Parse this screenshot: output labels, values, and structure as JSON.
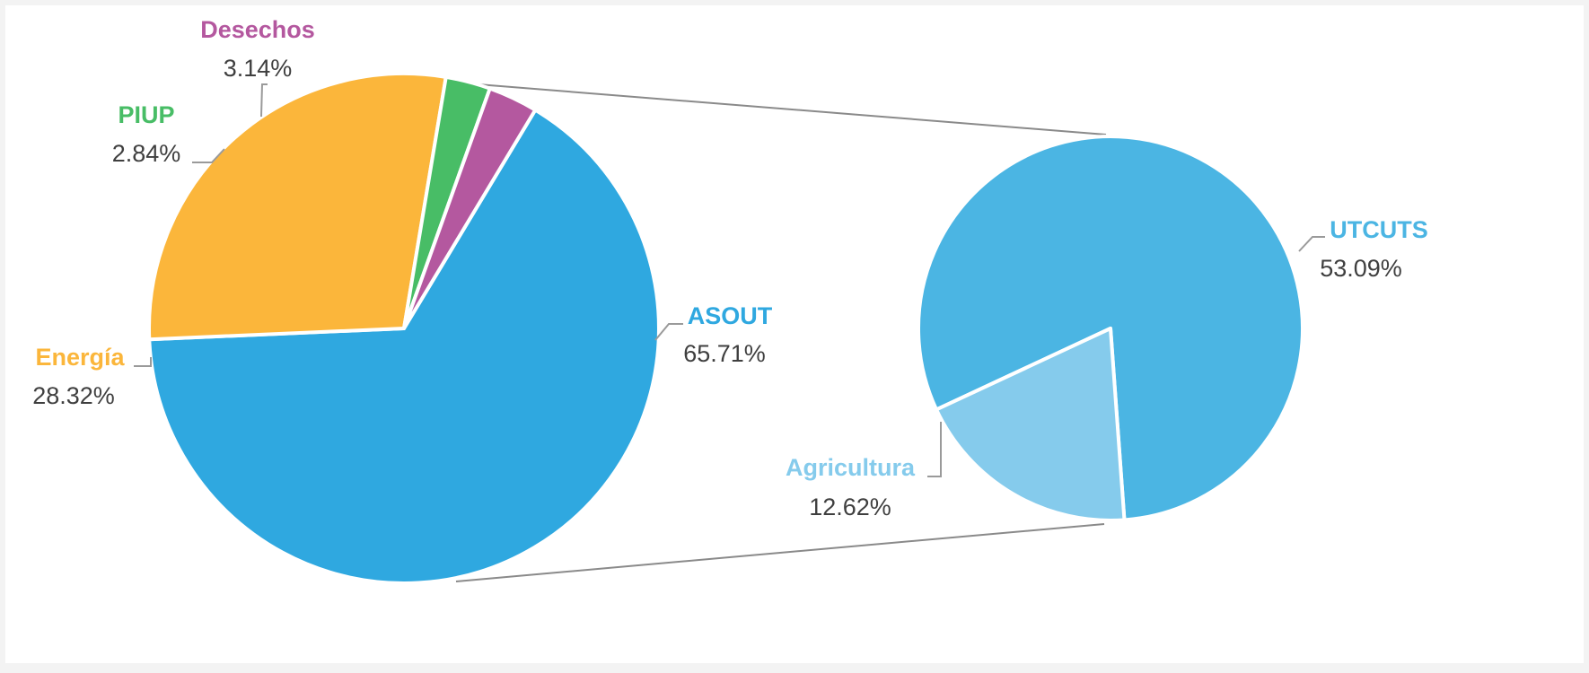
{
  "chart_data": {
    "type": "pie",
    "main_pie": {
      "slices": [
        {
          "name": "ASOUT",
          "value": 65.71,
          "label": "65.71%",
          "color": "#2fa8e0"
        },
        {
          "name": "Energía",
          "value": 28.32,
          "label": "28.32%",
          "color": "#fbb63b"
        },
        {
          "name": "PIUP",
          "value": 2.84,
          "label": "2.84%",
          "color": "#48bd66"
        },
        {
          "name": "Desechos",
          "value": 3.14,
          "label": "3.14%",
          "color": "#b4589f"
        }
      ]
    },
    "breakdown_pie": {
      "parent": "ASOUT",
      "slices": [
        {
          "name": "UTCUTS",
          "value": 53.09,
          "label": "53.09%",
          "color": "#4bb5e3"
        },
        {
          "name": "Agricultura",
          "value": 12.62,
          "label": "12.62%",
          "color": "#85cbec"
        }
      ]
    }
  }
}
